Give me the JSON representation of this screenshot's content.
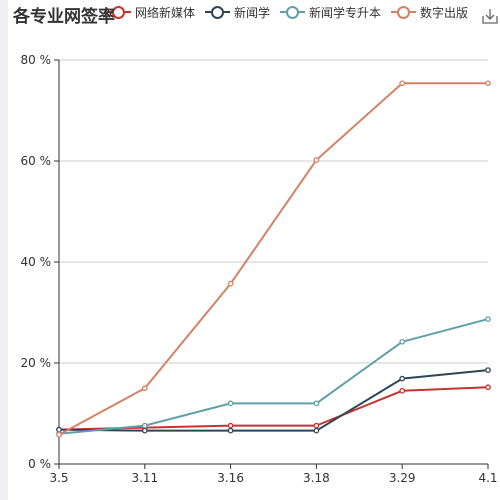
{
  "title": "各专业网签率",
  "legend_items": [
    {
      "label": "网络新媒体",
      "color": "#c23531"
    },
    {
      "label": "新闻学",
      "color": "#2f4554"
    },
    {
      "label": "新闻学专升本",
      "color": "#61a0a8"
    },
    {
      "label": "数字出版",
      "color": "#d48265"
    }
  ],
  "toolbar": {
    "download_icon": "download-icon"
  },
  "chart_data": {
    "type": "line",
    "title": "各专业网签率",
    "categories": [
      "3.5",
      "3.11",
      "3.16",
      "3.18",
      "3.29",
      "4.1"
    ],
    "y_ticks": [
      "0 %",
      "20 %",
      "40 %",
      "60 %",
      "80 %"
    ],
    "ylim": [
      0,
      80
    ],
    "grid": true,
    "legend_position": "top",
    "series": [
      {
        "name": "网络新媒体",
        "color": "#c23531",
        "values": [
          6.8,
          7.2,
          7.6,
          7.6,
          14.5,
          15.2
        ]
      },
      {
        "name": "新闻学",
        "color": "#2f4554",
        "values": [
          6.8,
          6.6,
          6.6,
          6.6,
          16.9,
          18.6
        ]
      },
      {
        "name": "新闻学专升本",
        "color": "#61a0a8",
        "values": [
          6.0,
          7.6,
          12.0,
          12.0,
          24.2,
          28.7
        ]
      },
      {
        "name": "数字出版",
        "color": "#d48265",
        "values": [
          5.8,
          15.0,
          35.7,
          60.2,
          75.4,
          75.4
        ]
      }
    ]
  }
}
